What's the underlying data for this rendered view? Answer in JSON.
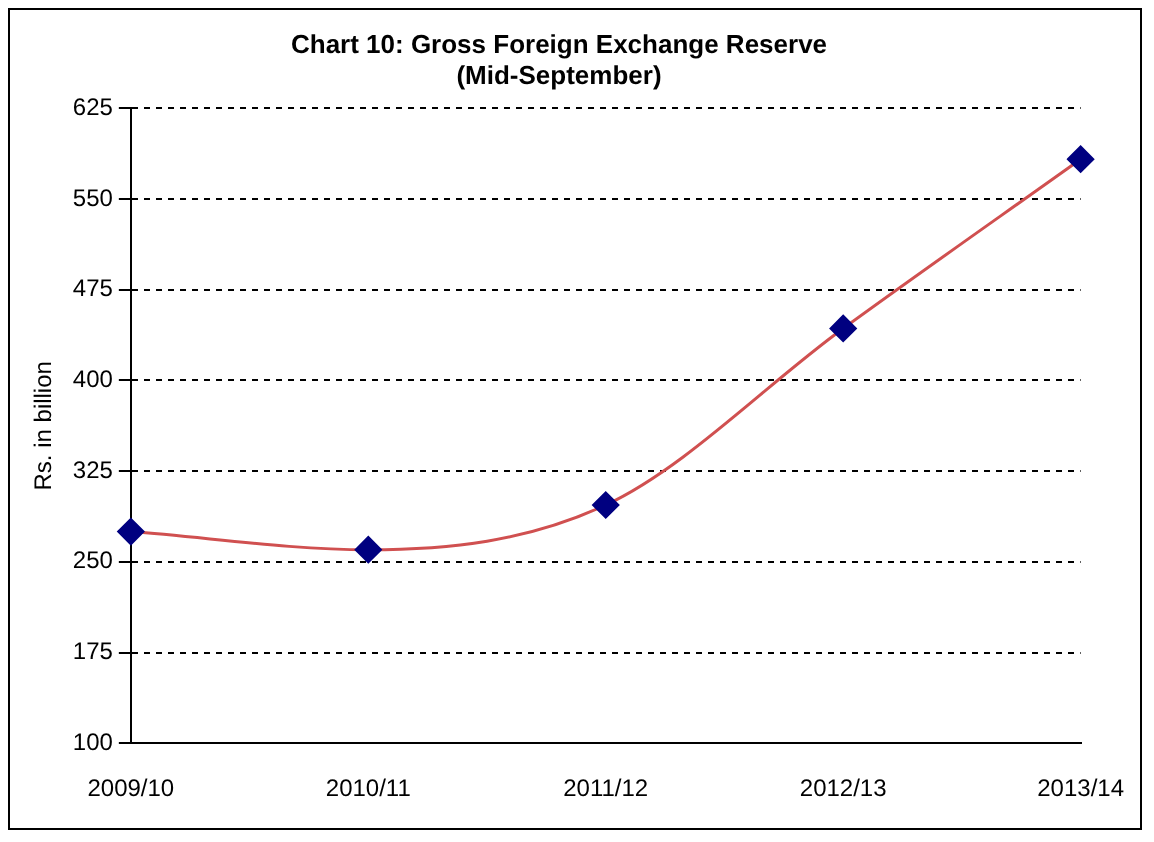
{
  "chart_data": {
    "type": "line",
    "title": [
      "Chart 10: Gross Foreign Exchange Reserve",
      "(Mid-September)"
    ],
    "ylabel": "Rs. in billion",
    "categories": [
      "2009/10",
      "2010/11",
      "2011/12",
      "2012/13",
      "2013/14"
    ],
    "series": [
      {
        "color": "#000080",
        "values": [
          275,
          260,
          297,
          443,
          583
        ]
      }
    ],
    "ylim": [
      100,
      625
    ],
    "yticks": [
      100,
      175,
      250,
      325,
      400,
      475,
      550,
      625
    ],
    "grid": "y",
    "legend": false,
    "marker": "diamond",
    "line_style": "solid"
  }
}
